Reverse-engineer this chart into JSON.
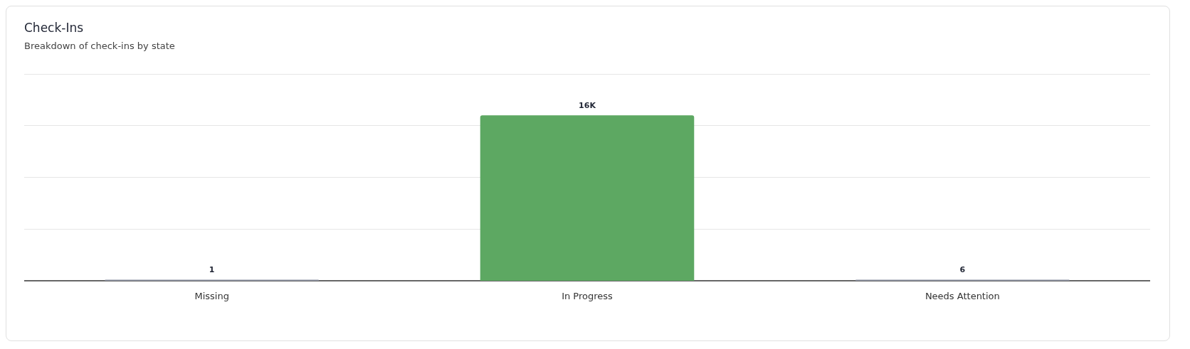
{
  "chart_data": {
    "type": "bar",
    "title": "Check-Ins",
    "subtitle": "Breakdown of check-ins by state",
    "categories": [
      "Missing",
      "In Progress",
      "Needs Attention"
    ],
    "values": [
      1,
      16000,
      6
    ],
    "colors": [
      "#8c91a1",
      "#5da862",
      "#8c91a1"
    ],
    "value_labels": [
      "1",
      "16K",
      "6"
    ],
    "ylim": [
      0,
      20000
    ],
    "yticks": [
      {
        "value": 0,
        "label": null
      },
      {
        "value": 5000,
        "label": null
      },
      {
        "value": 10000,
        "label": null
      },
      {
        "value": 15000,
        "label": null
      },
      {
        "value": 20000,
        "label": null
      }
    ],
    "tick_labels": "x",
    "grid": "y",
    "legend": false
  }
}
